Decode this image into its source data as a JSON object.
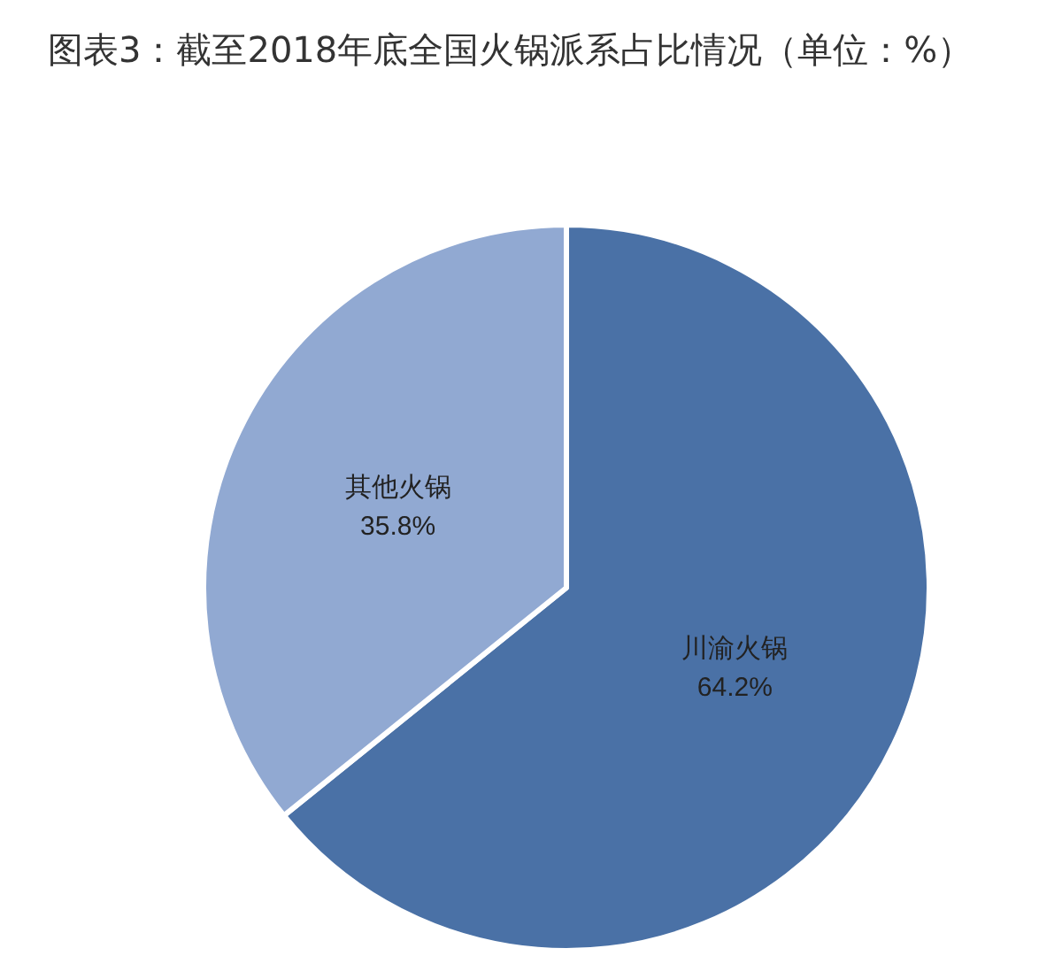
{
  "chart_data": {
    "type": "pie",
    "title": "图表3：截至2018年底全国火锅派系占比情况（单位：%）",
    "categories": [
      "川渝火锅",
      "其他火锅"
    ],
    "values": [
      64.2,
      35.8
    ],
    "colors": [
      "#4a71a6",
      "#91a9d2"
    ],
    "value_labels": [
      "64.2%",
      "35.8%"
    ],
    "legend": false
  }
}
